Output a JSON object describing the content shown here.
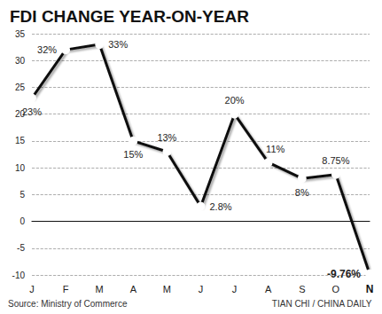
{
  "chart_data": {
    "type": "line",
    "title": "FDI CHANGE YEAR-ON-YEAR",
    "annotations": [
      "Source: Ministry of Commerce",
      "TIAN CHI / CHINA DAILY"
    ],
    "categories": [
      "J",
      "F",
      "M",
      "A",
      "M",
      "J",
      "J",
      "A",
      "S",
      "O",
      "N"
    ],
    "values": [
      23,
      32,
      33,
      15,
      13,
      2.8,
      20,
      11,
      8,
      8.75,
      -9.76
    ],
    "value_labels": [
      "23%",
      "32%",
      "33%",
      "15%",
      "13%",
      "2.8%",
      "20%",
      "11%",
      "8%",
      "8.75%",
      "-9.76%"
    ],
    "color": "#111111",
    "ylim": [
      -10,
      35
    ],
    "yticks": [
      -10,
      -5,
      0,
      5,
      10,
      15,
      20,
      25,
      30,
      35
    ],
    "grid": true,
    "data_labels": true,
    "marker": "circle"
  }
}
